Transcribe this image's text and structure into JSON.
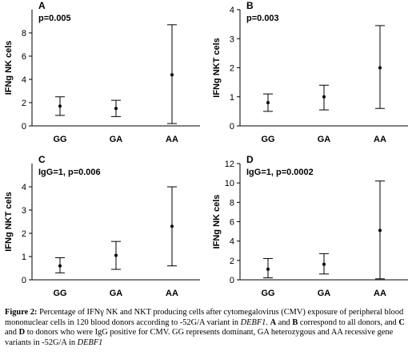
{
  "chart_data": [
    {
      "type": "scatter",
      "panel": "A",
      "annotation": "p=0.005",
      "ylabel": "IFNg NK cels",
      "categories": [
        "GG",
        "GA",
        "AA"
      ],
      "ylim": [
        0,
        10
      ],
      "yticks": [
        0,
        2,
        4,
        6,
        8
      ],
      "series": [
        {
          "mean": [
            1.7,
            1.5,
            4.4
          ],
          "lower": [
            0.9,
            0.8,
            0.2
          ],
          "upper": [
            2.5,
            2.2,
            8.7
          ]
        }
      ]
    },
    {
      "type": "scatter",
      "panel": "B",
      "annotation": "p=0.003",
      "ylabel": "IFNg NKT cels",
      "categories": [
        "GG",
        "GA",
        "AA"
      ],
      "ylim": [
        0,
        4
      ],
      "yticks": [
        0,
        1,
        2,
        3,
        4
      ],
      "series": [
        {
          "mean": [
            0.8,
            1.0,
            2.0
          ],
          "lower": [
            0.5,
            0.55,
            0.6
          ],
          "upper": [
            1.1,
            1.4,
            3.45
          ]
        }
      ]
    },
    {
      "type": "scatter",
      "panel": "C",
      "annotation": "IgG=1, p=0.006",
      "ylabel": "IFNg NKT cels",
      "categories": [
        "GG",
        "GA",
        "AA"
      ],
      "ylim": [
        0,
        5
      ],
      "yticks": [
        0,
        1,
        2,
        3,
        4
      ],
      "series": [
        {
          "mean": [
            0.6,
            1.05,
            2.3
          ],
          "lower": [
            0.3,
            0.45,
            0.6
          ],
          "upper": [
            0.95,
            1.65,
            4.0
          ]
        }
      ]
    },
    {
      "type": "scatter",
      "panel": "D",
      "annotation": "IgG=1, p=0.0002",
      "ylabel": "IFNg NK cels",
      "categories": [
        "GG",
        "GA",
        "AA"
      ],
      "ylim": [
        0,
        12
      ],
      "yticks": [
        0,
        2,
        4,
        6,
        8,
        10,
        12
      ],
      "series": [
        {
          "mean": [
            1.1,
            1.6,
            5.1
          ],
          "lower": [
            0.2,
            0.6,
            0.1
          ],
          "upper": [
            2.2,
            2.7,
            10.2
          ]
        }
      ]
    }
  ],
  "caption": {
    "label": "Figure 2:",
    "t1": " Percentage of IFNγ NK and NKT producing cells after cytomegalovirus (CMV) exposure of peripheral blood mononuclear cells in 120 blood donors according to -52G/A variant in ",
    "gene1": "DEBF1",
    "t2": ". ",
    "a": "A",
    "t3": " and ",
    "b": "B",
    "t4": " correspond to all donors, and ",
    "c": "C",
    "t5": " and ",
    "d": "D",
    "t6": " to donors who were IgG positive for CMV. GG represents dominant, GA heterozygous and AA recessive gene variants in -52G/A in ",
    "gene2": "DEBF1"
  }
}
